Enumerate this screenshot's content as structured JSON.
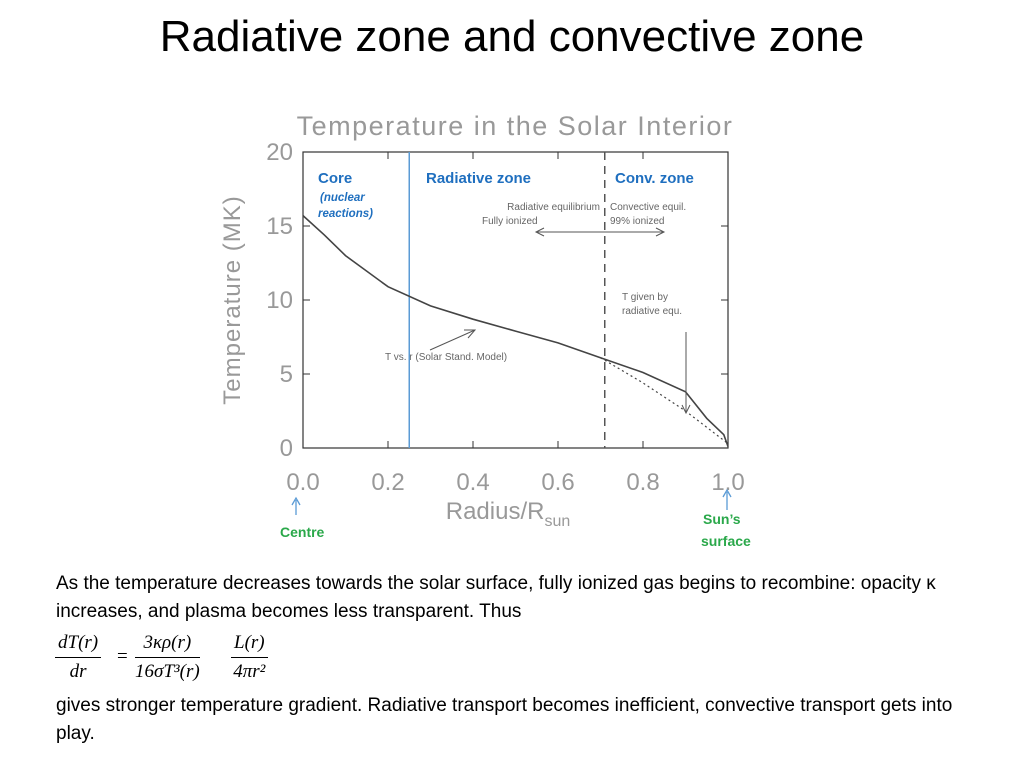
{
  "slide_title": "Radiative zone and convective zone",
  "chart_data": {
    "type": "line",
    "title": "Temperature in the Solar Interior",
    "xlabel": "Radius/R",
    "xlabel_sub": "sun",
    "ylabel": "Temperature (MK)",
    "xlim": [
      0,
      1
    ],
    "ylim": [
      0,
      20
    ],
    "x_ticks": [
      "0.0",
      "0.2",
      "0.4",
      "0.6",
      "0.8",
      "1.0"
    ],
    "y_ticks": [
      "0",
      "5",
      "10",
      "15",
      "20"
    ],
    "grid": false,
    "series": [
      {
        "style": "solid",
        "x": [
          0.0,
          0.05,
          0.1,
          0.2,
          0.3,
          0.4,
          0.5,
          0.6,
          0.7,
          0.8,
          0.9,
          0.95,
          0.99,
          1.0
        ],
        "y": [
          15.7,
          14.4,
          13.0,
          10.9,
          9.6,
          8.7,
          7.9,
          7.1,
          6.1,
          5.1,
          3.8,
          2.0,
          0.9,
          0.1
        ]
      },
      {
        "style": "dotted",
        "x": [
          0.7,
          0.8,
          0.9,
          1.0
        ],
        "y": [
          6.1,
          4.4,
          2.5,
          0.3
        ]
      }
    ],
    "vlines": [
      {
        "x": 0.25,
        "style": "solid",
        "color": "#5b9bd5"
      },
      {
        "x": 0.71,
        "style": "dashed",
        "color": "#555555"
      }
    ],
    "zones": {
      "core": {
        "title": "Core",
        "sub1": "(nuclear",
        "sub2": "reactions)"
      },
      "radiative": {
        "title": "Radiative zone",
        "line1": "Radiative equilibrium",
        "line2": "Fully ionized"
      },
      "convective": {
        "title": "Conv. zone",
        "line1": "Convective equil.",
        "line2": "99% ionized"
      }
    },
    "annotations": {
      "model": "T vs. r (Solar Stand. Model)",
      "t_given_1": "T given by",
      "t_given_2": "radiative equ."
    },
    "markers": {
      "centre": "Centre",
      "surface_1": "Sun’s",
      "surface_2": "surface"
    },
    "colors": {
      "zone_title": "#1f6fbf",
      "marker_green": "#2aa84a",
      "marker_arrow": "#5b9bd5",
      "axis_text": "#999999",
      "curve": "#444444"
    }
  },
  "paragraphs": {
    "p1": "As the temperature decreases towards the solar surface, fully ionized gas begins to recombine: opacity κ increases, and plasma becomes less transparent. Thus",
    "p2": "gives stronger temperature gradient. Radiative transport becomes inefficient, convective transport gets into play."
  },
  "equation": {
    "lhs_num": "dT(r)",
    "lhs_den": "dr",
    "equals": "=",
    "f1_num": "3κρ(r)",
    "f1_den": "16σT³(r)",
    "f2_num": "L(r)",
    "f2_den": "4πr²"
  }
}
